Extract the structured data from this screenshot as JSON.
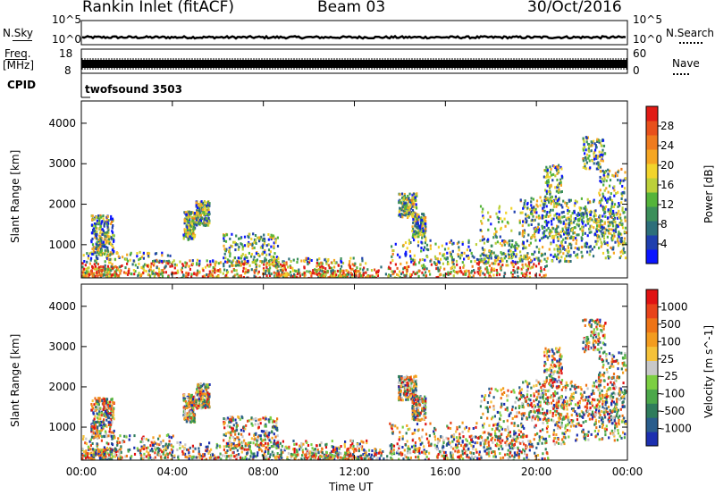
{
  "header": {
    "station": "Rankin Inlet (fitACF)",
    "beam": "Beam 03",
    "date": "30/Oct/2016"
  },
  "panels": {
    "nsky_label": "N.Sky",
    "nsky_ticks": [
      "10^5",
      "10^0"
    ],
    "nsearch_label": "N.Search",
    "freq_label_1": "Freq.",
    "freq_label_2": "[MHz]",
    "freq_ticks": [
      "18",
      "8"
    ],
    "nave_label": "Nave",
    "nave_ticks": [
      "60",
      "0"
    ],
    "cpid_label": "CPID",
    "cpid_value": "twofsound 3503"
  },
  "chart_data": [
    {
      "type": "heatmap",
      "name": "power",
      "ylabel": "Slant Range [km]",
      "xlabel": "",
      "x_ticks": [
        "00:00",
        "04:00",
        "08:00",
        "12:00",
        "16:00",
        "20:00",
        "00:00"
      ],
      "x_tick_hours": [
        0,
        4,
        8,
        12,
        16,
        20,
        24
      ],
      "y_ticks": [
        1000,
        2000,
        3000,
        4000
      ],
      "ylim": [
        180,
        4550
      ],
      "xlim_hours": [
        0,
        24
      ],
      "colorbar_label": "Power [dB]",
      "colorbar_ticks": [
        "28",
        "24",
        "20",
        "16",
        "12",
        "8",
        "4"
      ],
      "colorbar_colors": [
        "#0a14ff",
        "#1f3fae",
        "#2d6f7a",
        "#3c8f5a",
        "#55b43a",
        "#bcd03a",
        "#f2d42c",
        "#f5a623",
        "#ef7b1e",
        "#e8501b",
        "#e11b15"
      ]
    },
    {
      "type": "heatmap",
      "name": "velocity",
      "ylabel": "Slant Range [km]",
      "xlabel": "Time UT",
      "x_ticks": [
        "00:00",
        "04:00",
        "08:00",
        "12:00",
        "16:00",
        "20:00",
        "00:00"
      ],
      "x_tick_hours": [
        0,
        4,
        8,
        12,
        16,
        20,
        24
      ],
      "y_ticks": [
        1000,
        2000,
        3000,
        4000
      ],
      "ylim": [
        180,
        4550
      ],
      "xlim_hours": [
        0,
        24
      ],
      "colorbar_label": "Velocity [m s^-1]",
      "colorbar_ticks": [
        "1000",
        "500",
        "100",
        "25",
        "-25",
        "-100",
        "-500",
        "-1000"
      ],
      "colorbar_colors": [
        "#1c2fb0",
        "#2a5d8c",
        "#2f7c5c",
        "#4ca84a",
        "#7ccf42",
        "#c8c8c8",
        "#f5c23a",
        "#f39c1f",
        "#ee7417",
        "#e8431a",
        "#e01212"
      ]
    }
  ]
}
